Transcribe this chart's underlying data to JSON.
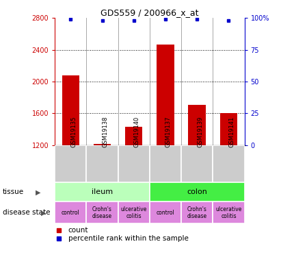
{
  "title": "GDS559 / 200966_x_at",
  "samples": [
    "GSM19135",
    "GSM19138",
    "GSM19140",
    "GSM19137",
    "GSM19139",
    "GSM19141"
  ],
  "counts": [
    2080,
    1215,
    1430,
    2470,
    1710,
    1600
  ],
  "percentiles": [
    99,
    98,
    98,
    99,
    99,
    98
  ],
  "ylim_left": [
    1200,
    2800
  ],
  "ylim_right": [
    0,
    100
  ],
  "yticks_left": [
    1200,
    1600,
    2000,
    2400,
    2800
  ],
  "yticks_right": [
    0,
    25,
    50,
    75,
    100
  ],
  "ytick_right_labels": [
    "0",
    "25",
    "50",
    "75",
    "100%"
  ],
  "bar_color": "#cc0000",
  "dot_color": "#0000cc",
  "tissue_ileum_color": "#bbffbb",
  "tissue_colon_color": "#44ee44",
  "disease_color": "#dd88dd",
  "bg_color": "#cccccc",
  "grid_lines": [
    1600,
    2000,
    2400
  ],
  "legend_count_color": "#cc0000",
  "legend_dot_color": "#0000cc"
}
